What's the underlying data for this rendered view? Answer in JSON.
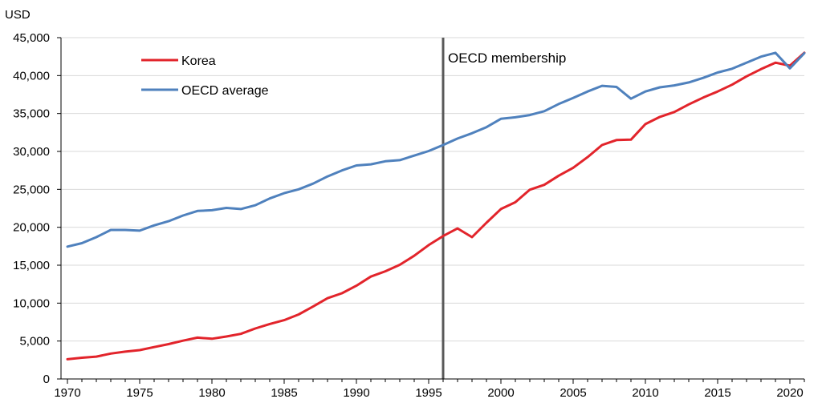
{
  "chart_data": {
    "type": "line",
    "title": "",
    "unit_label": "USD",
    "xlabel": "",
    "ylabel": "USD",
    "xlim": [
      1970,
      2021
    ],
    "ylim": [
      0,
      45000
    ],
    "y_ticks": [
      0,
      5000,
      10000,
      15000,
      20000,
      25000,
      30000,
      35000,
      40000,
      45000
    ],
    "y_tick_labels": [
      "0",
      "5,000",
      "10,000",
      "15,000",
      "20,000",
      "25,000",
      "30,000",
      "35,000",
      "40,000",
      "45,000"
    ],
    "x_ticks": [
      1970,
      1975,
      1980,
      1985,
      1990,
      1995,
      2000,
      2005,
      2010,
      2015,
      2020
    ],
    "x_tick_labels": [
      "1970",
      "1975",
      "1980",
      "1985",
      "1990",
      "1995",
      "2000",
      "2005",
      "2010",
      "2015",
      "2020"
    ],
    "grid": true,
    "legend_position": "top-left",
    "x": [
      1970,
      1971,
      1972,
      1973,
      1974,
      1975,
      1976,
      1977,
      1978,
      1979,
      1980,
      1981,
      1982,
      1983,
      1984,
      1985,
      1986,
      1987,
      1988,
      1989,
      1990,
      1991,
      1992,
      1993,
      1994,
      1995,
      1996,
      1997,
      1998,
      1999,
      2000,
      2001,
      2002,
      2003,
      2004,
      2005,
      2006,
      2007,
      2008,
      2009,
      2010,
      2011,
      2012,
      2013,
      2014,
      2015,
      2016,
      2017,
      2018,
      2019,
      2020,
      2021
    ],
    "series": [
      {
        "name": "Korea",
        "color": "#e2242b",
        "values": [
          2600,
          2800,
          2950,
          3350,
          3600,
          3800,
          4200,
          4600,
          5050,
          5450,
          5300,
          5600,
          5950,
          6650,
          7250,
          7750,
          8500,
          9550,
          10650,
          11300,
          12300,
          13500,
          14200,
          15050,
          16250,
          17650,
          18850,
          19850,
          18700,
          20600,
          22400,
          23300,
          24950,
          25600,
          26800,
          27850,
          29250,
          30850,
          31500,
          31550,
          33600,
          34550,
          35200,
          36200,
          37100,
          37900,
          38800,
          39900,
          40850,
          41700,
          41300,
          43000
        ]
      },
      {
        "name": "OECD average",
        "color": "#4f81bd",
        "values": [
          17450,
          17900,
          18700,
          19650,
          19650,
          19550,
          20250,
          20800,
          21550,
          22150,
          22250,
          22550,
          22400,
          22900,
          23800,
          24500,
          25000,
          25750,
          26700,
          27500,
          28150,
          28300,
          28700,
          28850,
          29450,
          30050,
          30850,
          31700,
          32400,
          33200,
          34300,
          34500,
          34800,
          35300,
          36250,
          37050,
          37900,
          38650,
          38500,
          36950,
          37900,
          38450,
          38700,
          39100,
          39700,
          40400,
          40900,
          41700,
          42500,
          43000,
          40950,
          42950
        ]
      }
    ],
    "annotations": [
      {
        "type": "vertical_line",
        "x": 1996,
        "label": "OECD membership",
        "color": "#595959"
      }
    ]
  }
}
